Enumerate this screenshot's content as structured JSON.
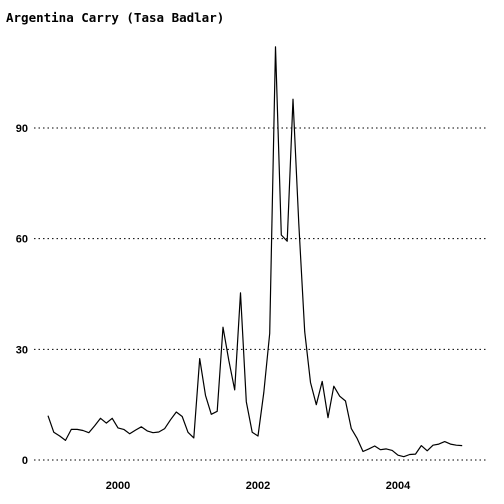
{
  "chart_data": {
    "type": "line",
    "title": "Argentina Carry (Tasa Badlar)",
    "xlabel": "",
    "ylabel": "",
    "xlim": [
      1998.8,
      2005.2
    ],
    "ylim": [
      -3,
      117
    ],
    "x_ticks": [
      2000,
      2002,
      2004
    ],
    "x_tick_labels": [
      "2000",
      "2002",
      "2004"
    ],
    "y_ticks": [
      0,
      30,
      60,
      90
    ],
    "y_tick_labels": [
      "0",
      "30",
      "60",
      "90"
    ],
    "grid": "horizontal dotted",
    "legend": "none",
    "series": [
      {
        "x": [
          1999.0,
          1999.083,
          1999.167,
          1999.25,
          1999.333,
          1999.417,
          1999.5,
          1999.583,
          1999.667,
          1999.75,
          1999.833,
          1999.917,
          2000.0,
          2000.083,
          2000.167,
          2000.25,
          2000.333,
          2000.417,
          2000.5,
          2000.583,
          2000.667,
          2000.75,
          2000.833,
          2000.917,
          2001.0,
          2001.083,
          2001.167,
          2001.25,
          2001.333,
          2001.417,
          2001.5,
          2001.583,
          2001.667,
          2001.75,
          2001.833,
          2001.917,
          2002.0,
          2002.083,
          2002.167,
          2002.25,
          2002.333,
          2002.417,
          2002.5,
          2002.583,
          2002.667,
          2002.75,
          2002.833,
          2002.917,
          2003.0,
          2003.083,
          2003.167,
          2003.25,
          2003.333,
          2003.417,
          2003.5,
          2003.583,
          2003.667,
          2003.75,
          2003.833,
          2003.917,
          2004.0,
          2004.083,
          2004.167,
          2004.25,
          2004.333,
          2004.417,
          2004.5,
          2004.583,
          2004.667,
          2004.75,
          2004.833,
          2004.917
        ],
        "y": [
          12,
          7.5,
          6.5,
          5.3,
          8.3,
          8.3,
          8.0,
          7.4,
          9.3,
          11.3,
          10.0,
          11.3,
          8.7,
          8.3,
          7.1,
          8.1,
          9.0,
          7.9,
          7.4,
          7.6,
          8.5,
          10.9,
          13.0,
          11.8,
          7.5,
          6.0,
          27.5,
          17.5,
          12.4,
          13.2,
          36.0,
          27.0,
          19.0,
          45.3,
          15.8,
          7.5,
          6.5,
          18.3,
          34.3,
          112.0,
          61.0,
          59.3,
          97.8,
          64.0,
          34.8,
          21.0,
          15.0,
          21.3,
          11.5,
          20.0,
          17.3,
          16.0,
          8.5,
          5.8,
          2.3,
          3.0,
          3.8,
          2.8,
          3.0,
          2.6,
          1.3,
          0.9,
          1.5,
          1.6,
          3.9,
          2.5,
          4.0,
          4.3,
          5.0,
          4.3,
          4.0,
          3.9
        ]
      }
    ]
  }
}
